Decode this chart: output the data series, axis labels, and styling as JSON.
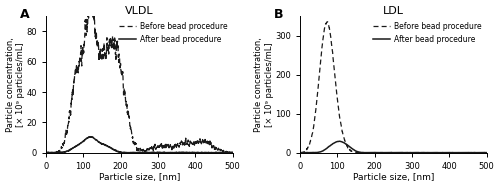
{
  "title_A": "VLDL",
  "title_B": "LDL",
  "label_A": "A",
  "label_B": "B",
  "legend_before": "Before bead procedure",
  "legend_after": "After bead procedure",
  "xlabel": "Particle size, [nm]",
  "ylabel_line1": "Particle concentration,",
  "ylabel_line2": "[× 10⁹ particles/mL]",
  "xlim": [
    0,
    500
  ],
  "ylim_A": [
    0,
    90
  ],
  "ylim_B": [
    0,
    350
  ],
  "yticks_A": [
    0,
    20,
    40,
    60,
    80
  ],
  "yticks_B": [
    0,
    100,
    200,
    300
  ],
  "xticks": [
    0,
    100,
    200,
    300,
    400,
    500
  ],
  "background_color": "#ffffff",
  "line_color": "#1a1a1a",
  "figsize": [
    5.0,
    1.88
  ],
  "dpi": 100
}
